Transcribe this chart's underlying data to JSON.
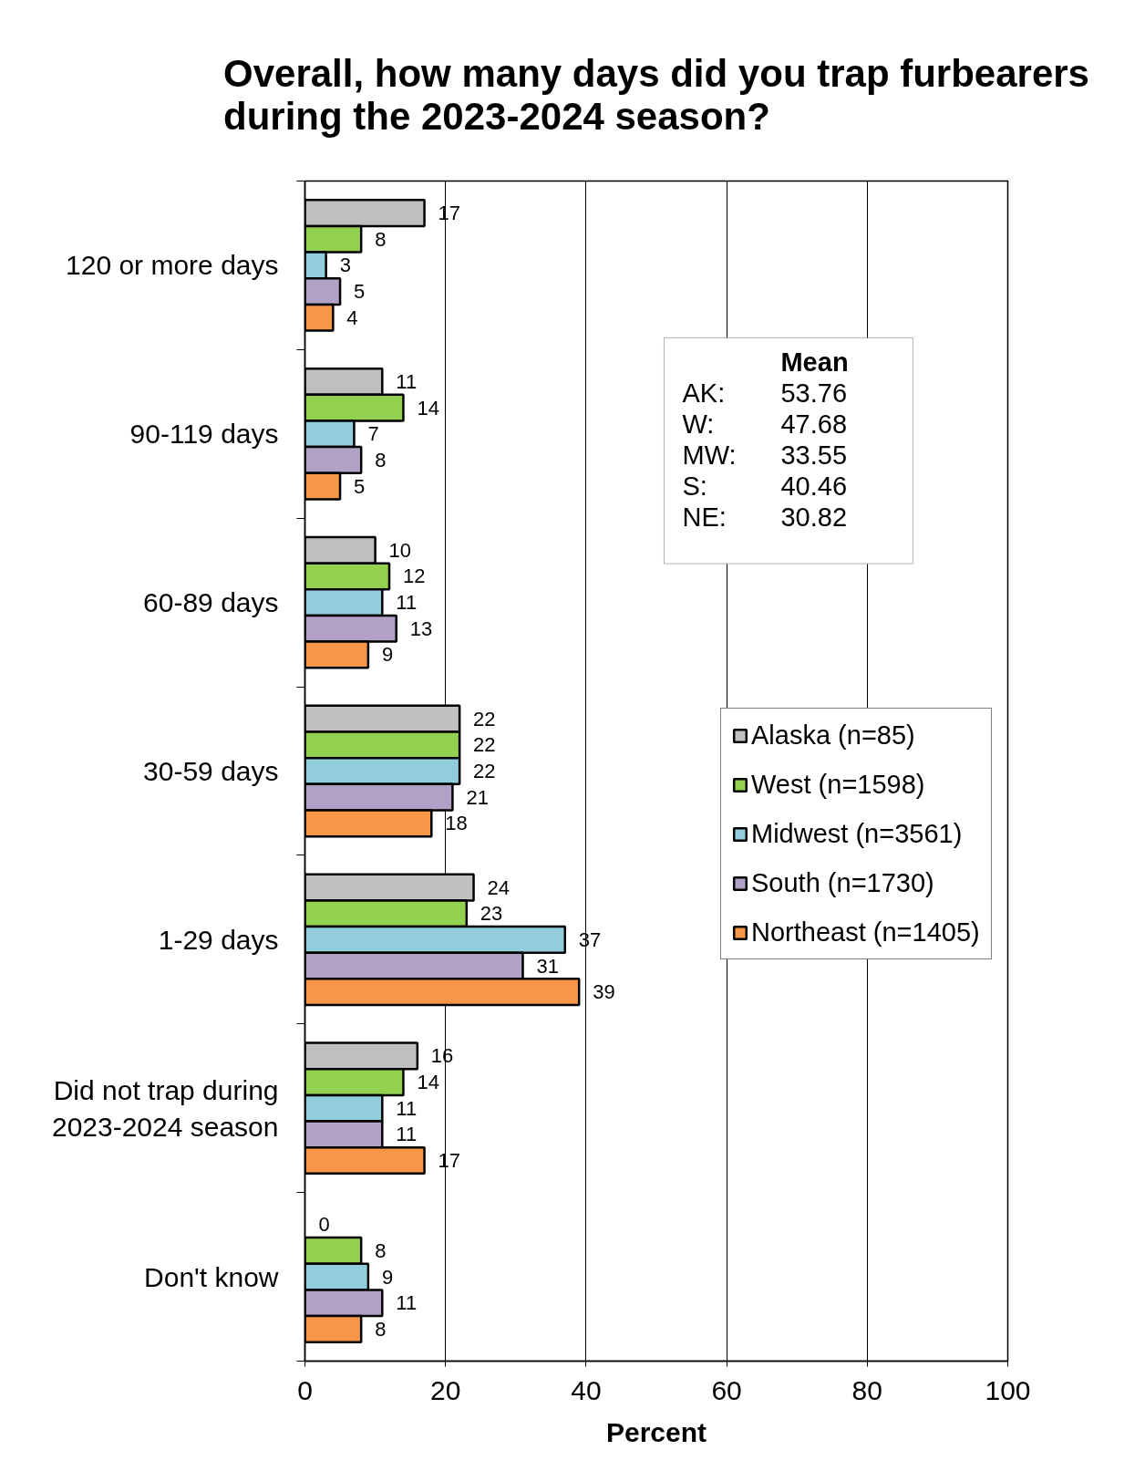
{
  "chart_data": {
    "type": "bar",
    "orientation": "horizontal",
    "title": "Overall, how many days did you trap furbearers during the 2023-2024 season?",
    "xlabel": "Percent",
    "categories": [
      "120 or more days",
      "90-119 days",
      "60-89 days",
      "30-59 days",
      "1-29 days",
      "Did not trap during 2023-2024 season",
      "Don't know"
    ],
    "series": [
      {
        "name": "Alaska (n=85)",
        "color": "#c0c0c0",
        "values": [
          17,
          11,
          10,
          22,
          24,
          16,
          0
        ]
      },
      {
        "name": "West (n=1598)",
        "color": "#92d050",
        "values": [
          8,
          14,
          12,
          22,
          23,
          14,
          8
        ]
      },
      {
        "name": "Midwest (n=3561)",
        "color": "#92cddc",
        "values": [
          3,
          7,
          11,
          22,
          37,
          11,
          9
        ]
      },
      {
        "name": "South (n=1730)",
        "color": "#b2a1c7",
        "values": [
          5,
          8,
          13,
          21,
          31,
          11,
          11
        ]
      },
      {
        "name": "Northeast (n=1405)",
        "color": "#f79646",
        "values": [
          4,
          5,
          9,
          18,
          39,
          17,
          8
        ]
      }
    ],
    "xlim": [
      0,
      100
    ],
    "xticks": [
      0,
      20,
      40,
      60,
      80,
      100
    ],
    "grid": "x",
    "legend": "right",
    "data_labels": true,
    "annotations": [
      "Mean",
      "AK:",
      "53.76",
      "W:",
      "47.68",
      "MW:",
      "33.55",
      "S:",
      "40.46",
      "NE:",
      "30.82"
    ]
  }
}
